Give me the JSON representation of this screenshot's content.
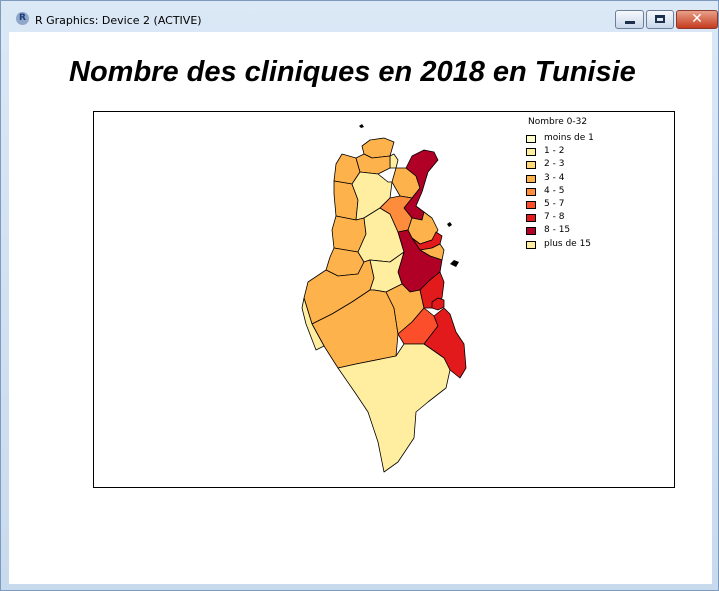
{
  "window": {
    "title": "R Graphics: Device 2 (ACTIVE)",
    "icon": "r-logo-icon",
    "icon_letter": "R"
  },
  "controls": {
    "minimize_icon": "minimize-icon",
    "maximize_icon": "maximize-icon",
    "close_icon": "close-icon",
    "close_glyph": "✕"
  },
  "plot": {
    "title": "Nombre des cliniques en 2018 en Tunisie"
  },
  "legend": {
    "title": "Nombre 0-32",
    "items": [
      {
        "label": "moins de 1",
        "color": "#ffffcc"
      },
      {
        "label": "1 - 2",
        "color": "#ffeda0"
      },
      {
        "label": "2 - 3",
        "color": "#fed976"
      },
      {
        "label": "3 - 4",
        "color": "#feb24c"
      },
      {
        "label": "4 - 5",
        "color": "#fd8d3c"
      },
      {
        "label": "5 - 7",
        "color": "#fc4e2a"
      },
      {
        "label": "7 - 8",
        "color": "#e31a1c"
      },
      {
        "label": "8 - 15",
        "color": "#b10026"
      },
      {
        "label": "plus de 15",
        "color": "#ffeda0"
      }
    ]
  },
  "map": {
    "regions": [
      {
        "name": "north-west-1",
        "class": "3 - 4"
      },
      {
        "name": "north-west-2",
        "class": "3 - 4"
      },
      {
        "name": "north-center-1",
        "class": "3 - 4"
      },
      {
        "name": "north-center-2",
        "class": "1 - 2"
      },
      {
        "name": "north-center-3",
        "class": "3 - 4"
      },
      {
        "name": "north-center-4",
        "class": "3 - 4"
      },
      {
        "name": "north-center-5",
        "class": "1 - 2"
      },
      {
        "name": "cap-bon",
        "class": "8 - 15"
      },
      {
        "name": "west-center-1",
        "class": "3 - 4"
      },
      {
        "name": "west-center-2",
        "class": "3 - 4"
      },
      {
        "name": "center-1",
        "class": "1 - 2"
      },
      {
        "name": "center-2",
        "class": "4 - 5"
      },
      {
        "name": "center-3",
        "class": "3 - 4"
      },
      {
        "name": "coast-1",
        "class": "7 - 8"
      },
      {
        "name": "coast-2",
        "class": "3 - 4"
      },
      {
        "name": "coast-3",
        "class": "8 - 15"
      },
      {
        "name": "west-1",
        "class": "3 - 4"
      },
      {
        "name": "center-4",
        "class": "1 - 2"
      },
      {
        "name": "west-2",
        "class": "3 - 4"
      },
      {
        "name": "south-west-1",
        "class": "1 - 2"
      },
      {
        "name": "south-west-2",
        "class": "3 - 4"
      },
      {
        "name": "south-center",
        "class": "5 - 7"
      },
      {
        "name": "south-east-1",
        "class": "7 - 8"
      },
      {
        "name": "south-east-2",
        "class": "7 - 8"
      },
      {
        "name": "south",
        "class": "1 - 2"
      }
    ]
  }
}
